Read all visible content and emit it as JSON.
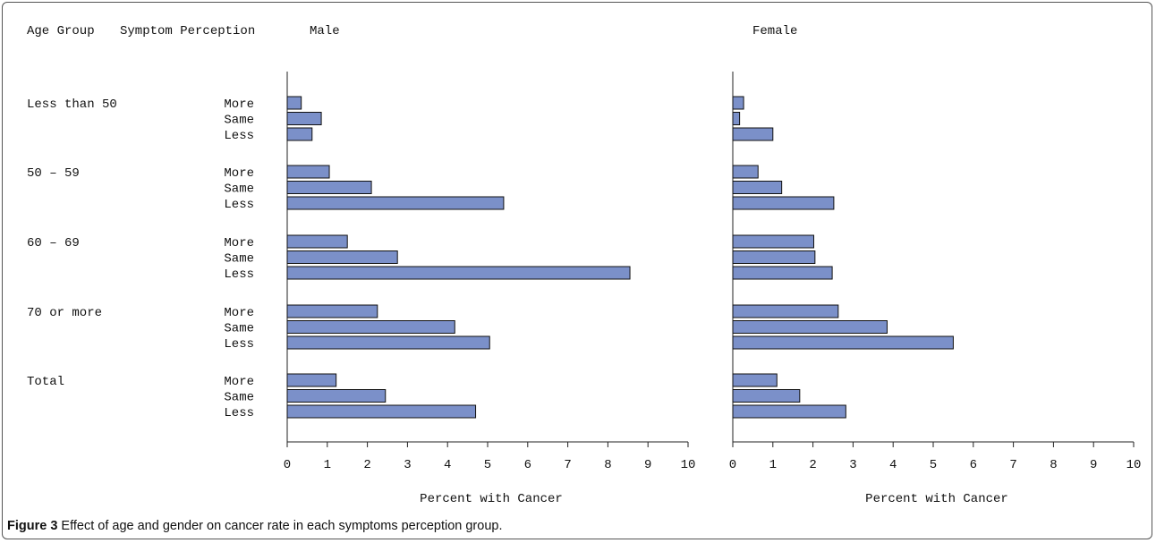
{
  "chart_data": {
    "type": "bar",
    "orientation": "horizontal",
    "header": {
      "age_group": "Age Group",
      "symptom_perception": "Symptom Perception"
    },
    "groups": [
      "Less than 50",
      "50 – 59",
      "60 – 69",
      "70 or more",
      "Total"
    ],
    "perceptions": [
      "More",
      "Same",
      "Less"
    ],
    "xlim": [
      0,
      10
    ],
    "xticks": [
      "0",
      "1",
      "2",
      "3",
      "4",
      "5",
      "6",
      "7",
      "8",
      "9",
      "10"
    ],
    "bar_color": "#7b90c9",
    "panels": [
      {
        "name": "Male",
        "xlabel": "Percent with Cancer",
        "values": [
          [
            0.35,
            0.85,
            0.62
          ],
          [
            1.05,
            2.1,
            5.4
          ],
          [
            1.5,
            2.75,
            8.55
          ],
          [
            2.25,
            4.18,
            5.05
          ],
          [
            1.22,
            2.45,
            4.7
          ]
        ]
      },
      {
        "name": "Female",
        "xlabel": "Percent with Cancer",
        "values": [
          [
            0.27,
            0.17,
            1.0
          ],
          [
            0.63,
            1.22,
            2.52
          ],
          [
            2.02,
            2.05,
            2.48
          ],
          [
            2.63,
            3.85,
            5.5
          ],
          [
            1.1,
            1.67,
            2.82
          ]
        ]
      }
    ]
  },
  "caption": {
    "label": "Figure 3",
    "text": " Effect of age and gender on cancer rate in each symptoms perception group."
  }
}
